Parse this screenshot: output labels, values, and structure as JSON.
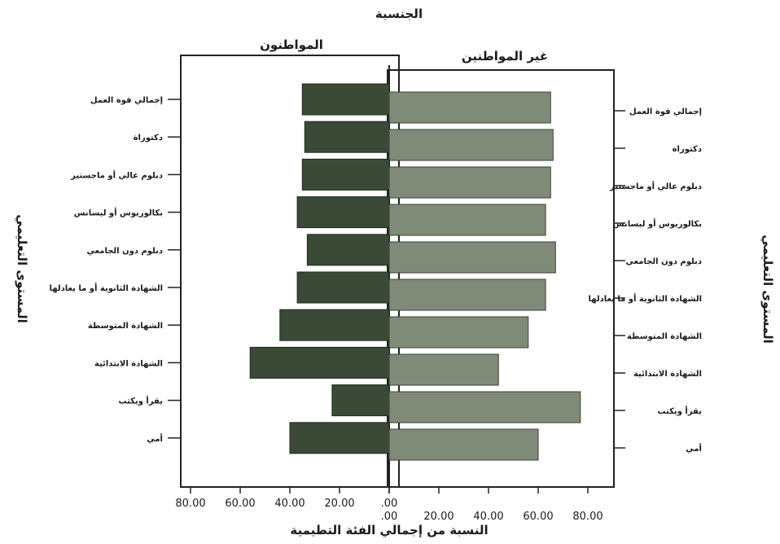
{
  "chart_data": {
    "type": "bar",
    "title": "الجنسية",
    "xlabel": "النسبة من إجمالي الفئة التطيمية",
    "ylabel": "المستوى التعليمي",
    "categories": [
      "إجمالي قوة العمل",
      "دكتوراة",
      "دبلوم عالي أو ماجستير",
      "بكالوريوس أو ليسانس",
      "دبلوم دون الجامعي",
      "الشهادة الثانوية أو ما يعادلها",
      "الشهادة المتوسطة",
      "الشهادة الابتدائية",
      "يقرأ ويكتب",
      "أمي"
    ],
    "series": [
      {
        "name": "المواطنون",
        "values": [
          35,
          34,
          35,
          37,
          33,
          37,
          44,
          56,
          23,
          40
        ],
        "color": "#3a4a37"
      },
      {
        "name": "غير المواطنين",
        "values": [
          65,
          66,
          65,
          63,
          67,
          63,
          56,
          44,
          77,
          60
        ],
        "color": "#7f8a78"
      }
    ],
    "ticks_left": [
      "80.00",
      "60.00",
      "40.00",
      "20.00",
      ".00"
    ],
    "ticks_right": [
      ".00",
      "20.00",
      "40.00",
      "60.00",
      "80.00"
    ],
    "xlim": [
      0,
      80
    ],
    "grid": false
  }
}
